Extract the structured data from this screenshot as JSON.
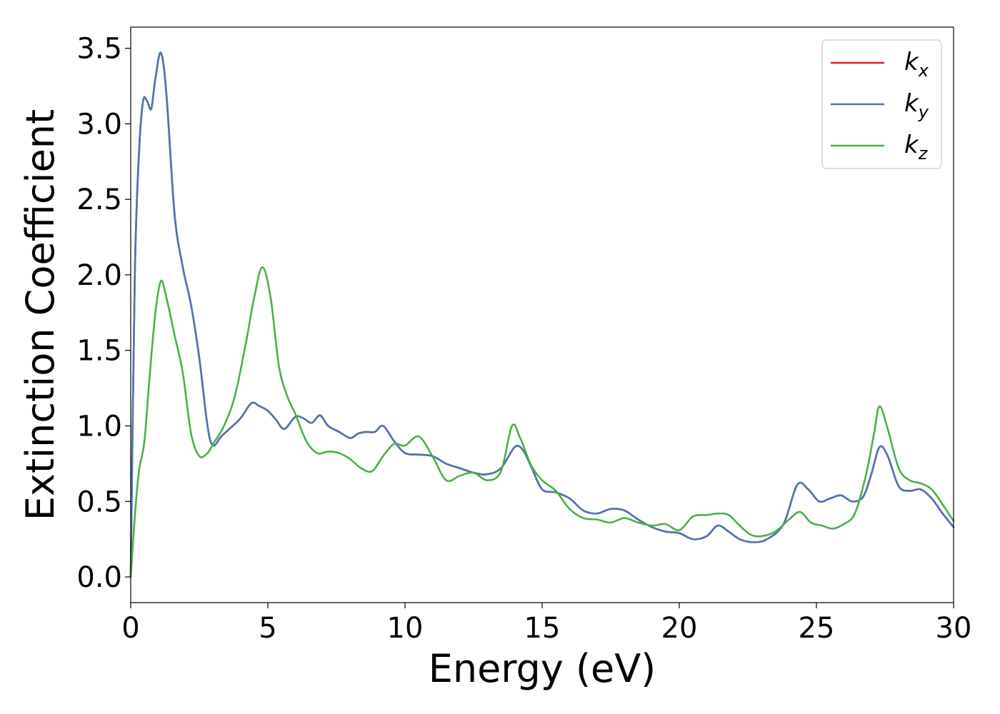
{
  "chart_data": {
    "type": "line",
    "xlabel": "Energy (eV)",
    "ylabel": "Extinction Coefficient",
    "xlim": [
      0,
      30
    ],
    "ylim": [
      -0.17,
      3.64
    ],
    "xticks": [
      0,
      5,
      10,
      15,
      20,
      25,
      30
    ],
    "xtick_labels": [
      "0",
      "5",
      "10",
      "15",
      "20",
      "25",
      "30"
    ],
    "yticks": [
      0.0,
      0.5,
      1.0,
      1.5,
      2.0,
      2.5,
      3.0,
      3.5
    ],
    "ytick_labels": [
      "0.0",
      "0.5",
      "1.0",
      "1.5",
      "2.0",
      "2.5",
      "3.0",
      "3.5"
    ],
    "grid": false,
    "legend_position": "top-right",
    "series": [
      {
        "name": "k_x",
        "label_base": "k",
        "label_sub": "x",
        "color": "#e31a1c",
        "x": [
          0,
          0.15,
          0.3,
          0.45,
          0.6,
          0.75,
          0.9,
          1.1,
          1.3,
          1.6,
          1.9,
          2.2,
          2.5,
          2.8,
          3.0,
          3.3,
          3.6,
          4.0,
          4.4,
          4.7,
          5.0,
          5.3,
          5.6,
          6.0,
          6.3,
          6.6,
          6.9,
          7.2,
          7.6,
          8.0,
          8.3,
          8.6,
          8.9,
          9.2,
          9.6,
          10.0,
          10.5,
          11.0,
          11.5,
          12.0,
          12.5,
          13.0,
          13.5,
          14.0,
          14.3,
          14.6,
          15.0,
          15.5,
          16.0,
          16.5,
          17.0,
          17.5,
          18.0,
          18.5,
          19.0,
          19.5,
          20.0,
          20.5,
          21.0,
          21.4,
          21.8,
          22.2,
          22.7,
          23.2,
          23.8,
          24.3,
          24.7,
          25.1,
          25.5,
          25.9,
          26.3,
          26.7,
          27.0,
          27.3,
          27.6,
          28.0,
          28.4,
          28.8,
          29.2,
          29.6,
          30.0
        ],
        "values": [
          0.0,
          2.0,
          2.8,
          3.15,
          3.15,
          3.1,
          3.3,
          3.47,
          3.2,
          2.4,
          2.05,
          1.8,
          1.45,
          1.0,
          0.87,
          0.93,
          0.98,
          1.05,
          1.15,
          1.13,
          1.1,
          1.04,
          0.98,
          1.06,
          1.05,
          1.02,
          1.07,
          1.0,
          0.96,
          0.92,
          0.95,
          0.96,
          0.96,
          1.0,
          0.9,
          0.82,
          0.81,
          0.8,
          0.75,
          0.72,
          0.69,
          0.68,
          0.72,
          0.86,
          0.84,
          0.73,
          0.58,
          0.56,
          0.52,
          0.44,
          0.42,
          0.45,
          0.44,
          0.38,
          0.33,
          0.3,
          0.29,
          0.25,
          0.27,
          0.34,
          0.3,
          0.25,
          0.23,
          0.25,
          0.35,
          0.61,
          0.58,
          0.5,
          0.52,
          0.54,
          0.5,
          0.53,
          0.68,
          0.86,
          0.8,
          0.6,
          0.57,
          0.58,
          0.52,
          0.42,
          0.33
        ]
      },
      {
        "name": "k_y",
        "label_base": "k",
        "label_sub": "y",
        "color": "#4a77b4",
        "x": [
          0,
          0.15,
          0.3,
          0.45,
          0.6,
          0.75,
          0.9,
          1.1,
          1.3,
          1.6,
          1.9,
          2.2,
          2.5,
          2.8,
          3.0,
          3.3,
          3.6,
          4.0,
          4.4,
          4.7,
          5.0,
          5.3,
          5.6,
          6.0,
          6.3,
          6.6,
          6.9,
          7.2,
          7.6,
          8.0,
          8.3,
          8.6,
          8.9,
          9.2,
          9.6,
          10.0,
          10.5,
          11.0,
          11.5,
          12.0,
          12.5,
          13.0,
          13.5,
          14.0,
          14.3,
          14.6,
          15.0,
          15.5,
          16.0,
          16.5,
          17.0,
          17.5,
          18.0,
          18.5,
          19.0,
          19.5,
          20.0,
          20.5,
          21.0,
          21.4,
          21.8,
          22.2,
          22.7,
          23.2,
          23.8,
          24.3,
          24.7,
          25.1,
          25.5,
          25.9,
          26.3,
          26.7,
          27.0,
          27.3,
          27.6,
          28.0,
          28.4,
          28.8,
          29.2,
          29.6,
          30.0
        ],
        "values": [
          0.0,
          2.0,
          2.8,
          3.15,
          3.15,
          3.1,
          3.3,
          3.47,
          3.2,
          2.4,
          2.05,
          1.8,
          1.45,
          1.0,
          0.87,
          0.93,
          0.98,
          1.05,
          1.15,
          1.13,
          1.1,
          1.04,
          0.98,
          1.06,
          1.05,
          1.02,
          1.07,
          1.0,
          0.96,
          0.92,
          0.95,
          0.96,
          0.96,
          1.0,
          0.9,
          0.82,
          0.81,
          0.8,
          0.75,
          0.72,
          0.69,
          0.68,
          0.72,
          0.86,
          0.84,
          0.73,
          0.58,
          0.56,
          0.52,
          0.44,
          0.42,
          0.45,
          0.44,
          0.38,
          0.33,
          0.3,
          0.29,
          0.25,
          0.27,
          0.34,
          0.3,
          0.25,
          0.23,
          0.25,
          0.35,
          0.61,
          0.58,
          0.5,
          0.52,
          0.54,
          0.5,
          0.53,
          0.68,
          0.86,
          0.8,
          0.6,
          0.57,
          0.58,
          0.52,
          0.42,
          0.33
        ]
      },
      {
        "name": "k_z",
        "label_base": "k",
        "label_sub": "z",
        "color": "#4daf4a",
        "x": [
          0,
          0.15,
          0.3,
          0.5,
          0.7,
          0.9,
          1.1,
          1.3,
          1.6,
          1.9,
          2.2,
          2.5,
          2.8,
          3.0,
          3.4,
          3.8,
          4.2,
          4.5,
          4.8,
          5.1,
          5.4,
          5.7,
          6.0,
          6.4,
          6.8,
          7.2,
          7.6,
          8.0,
          8.4,
          8.8,
          9.2,
          9.6,
          10.0,
          10.5,
          11.0,
          11.5,
          12.0,
          12.5,
          13.0,
          13.5,
          13.9,
          14.2,
          14.6,
          15.0,
          15.5,
          16.0,
          16.5,
          17.0,
          17.5,
          18.0,
          18.5,
          19.0,
          19.5,
          20.0,
          20.5,
          21.0,
          21.4,
          21.8,
          22.2,
          22.6,
          23.0,
          23.5,
          24.0,
          24.4,
          24.8,
          25.2,
          25.6,
          26.0,
          26.4,
          26.8,
          27.1,
          27.3,
          27.6,
          28.0,
          28.4,
          28.8,
          29.2,
          29.6,
          30.0
        ],
        "values": [
          0.0,
          0.4,
          0.7,
          0.9,
          1.35,
          1.75,
          1.96,
          1.85,
          1.6,
          1.35,
          0.95,
          0.8,
          0.82,
          0.88,
          1.0,
          1.2,
          1.55,
          1.85,
          2.05,
          1.85,
          1.4,
          1.2,
          1.08,
          0.9,
          0.82,
          0.83,
          0.82,
          0.78,
          0.72,
          0.7,
          0.8,
          0.88,
          0.87,
          0.93,
          0.8,
          0.64,
          0.67,
          0.69,
          0.64,
          0.7,
          1.0,
          0.92,
          0.74,
          0.64,
          0.57,
          0.45,
          0.39,
          0.38,
          0.36,
          0.39,
          0.36,
          0.34,
          0.35,
          0.31,
          0.4,
          0.41,
          0.42,
          0.41,
          0.34,
          0.28,
          0.27,
          0.3,
          0.38,
          0.43,
          0.36,
          0.34,
          0.32,
          0.35,
          0.42,
          0.67,
          0.95,
          1.13,
          0.98,
          0.72,
          0.64,
          0.62,
          0.58,
          0.48,
          0.37
        ]
      }
    ]
  }
}
